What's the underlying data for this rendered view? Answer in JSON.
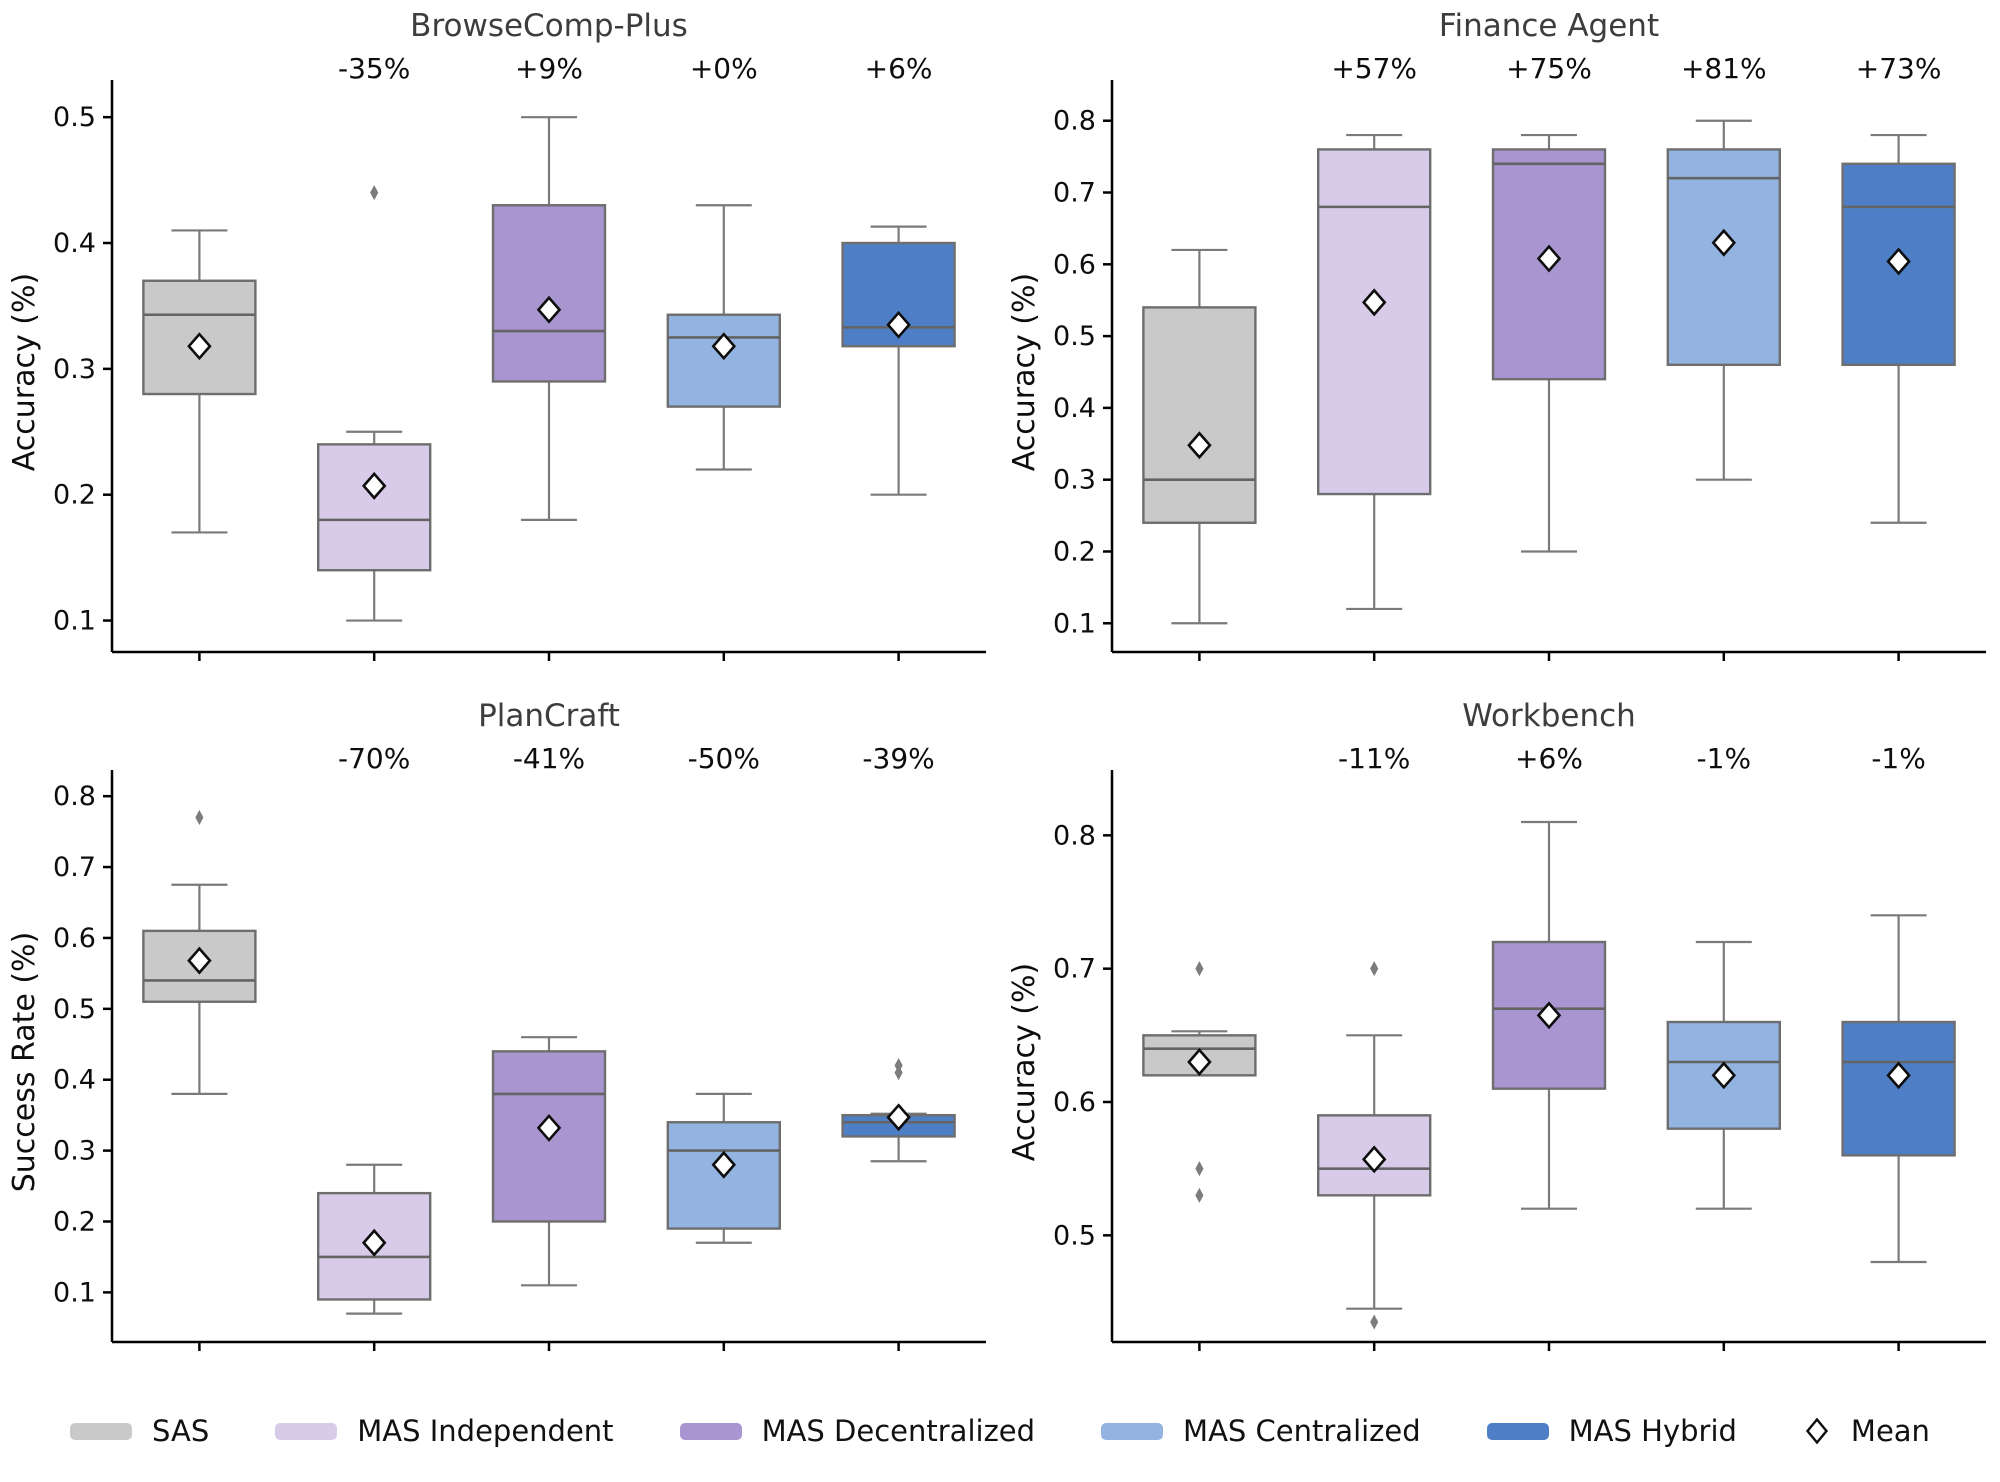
{
  "colors": {
    "fills": [
      "#c9c9c9",
      "#d8cbe9",
      "#a995d0",
      "#93b3e1",
      "#4e7fc6"
    ],
    "box_edge": "#6e6e6e",
    "whisker": "#7a7a7a",
    "median": "#646464",
    "title": "#3d3d3d",
    "annotation_red": "#e01414",
    "annotation_green": "#128a12"
  },
  "legend": {
    "items": [
      {
        "label": "SAS",
        "color": "#c9c9c9"
      },
      {
        "label": "MAS Independent",
        "color": "#d8cbe9"
      },
      {
        "label": "MAS Decentralized",
        "color": "#a995d0"
      },
      {
        "label": "MAS Centralized",
        "color": "#93b3e1"
      },
      {
        "label": "MAS Hybrid",
        "color": "#4e7fc6"
      }
    ],
    "mean_label": "Mean"
  },
  "chart_data": [
    {
      "type": "box",
      "title": "BrowseComp-Plus",
      "ylabel": "Accuracy (%)",
      "ylim": [
        0.075,
        0.52
      ],
      "yticks": [
        0.1,
        0.2,
        0.3,
        0.4,
        0.5
      ],
      "annotations": [
        {
          "text": "-35%",
          "color": "#e01414"
        },
        {
          "text": "+9%",
          "color": "#128a12"
        },
        {
          "text": "+0%",
          "color": "#128a12"
        },
        {
          "text": "+6%",
          "color": "#128a12"
        }
      ],
      "series": [
        {
          "name": "SAS",
          "whislo": 0.17,
          "q1": 0.28,
          "med": 0.343,
          "q3": 0.37,
          "whishi": 0.41,
          "mean": 0.318,
          "fliers": []
        },
        {
          "name": "MAS Independent",
          "whislo": 0.1,
          "q1": 0.14,
          "med": 0.18,
          "q3": 0.24,
          "whishi": 0.25,
          "mean": 0.207,
          "fliers": [
            0.44
          ]
        },
        {
          "name": "MAS Decentralized",
          "whislo": 0.18,
          "q1": 0.29,
          "med": 0.33,
          "q3": 0.43,
          "whishi": 0.5,
          "mean": 0.347,
          "fliers": []
        },
        {
          "name": "MAS Centralized",
          "whislo": 0.22,
          "q1": 0.27,
          "med": 0.325,
          "q3": 0.343,
          "whishi": 0.43,
          "mean": 0.318,
          "fliers": []
        },
        {
          "name": "MAS Hybrid",
          "whislo": 0.2,
          "q1": 0.318,
          "med": 0.333,
          "q3": 0.4,
          "whishi": 0.413,
          "mean": 0.335,
          "fliers": []
        }
      ]
    },
    {
      "type": "box",
      "title": "Finance Agent",
      "ylabel": "Accuracy (%)",
      "ylim": [
        0.06,
        0.84
      ],
      "yticks": [
        0.1,
        0.2,
        0.3,
        0.4,
        0.5,
        0.6,
        0.7,
        0.8
      ],
      "annotations": [
        {
          "text": "+57%",
          "color": "#128a12"
        },
        {
          "text": "+75%",
          "color": "#128a12"
        },
        {
          "text": "+81%",
          "color": "#128a12"
        },
        {
          "text": "+73%",
          "color": "#128a12"
        }
      ],
      "series": [
        {
          "name": "SAS",
          "whislo": 0.1,
          "q1": 0.24,
          "med": 0.3,
          "q3": 0.54,
          "whishi": 0.62,
          "mean": 0.348,
          "fliers": []
        },
        {
          "name": "MAS Independent",
          "whislo": 0.12,
          "q1": 0.28,
          "med": 0.68,
          "q3": 0.76,
          "whishi": 0.78,
          "mean": 0.547,
          "fliers": []
        },
        {
          "name": "MAS Decentralized",
          "whislo": 0.2,
          "q1": 0.44,
          "med": 0.74,
          "q3": 0.76,
          "whishi": 0.78,
          "mean": 0.608,
          "fliers": []
        },
        {
          "name": "MAS Centralized",
          "whislo": 0.3,
          "q1": 0.46,
          "med": 0.72,
          "q3": 0.76,
          "whishi": 0.8,
          "mean": 0.63,
          "fliers": []
        },
        {
          "name": "MAS Hybrid",
          "whislo": 0.24,
          "q1": 0.46,
          "med": 0.68,
          "q3": 0.74,
          "whishi": 0.78,
          "mean": 0.604,
          "fliers": []
        }
      ]
    },
    {
      "type": "box",
      "title": "PlanCraft",
      "ylabel": "Success Rate (%)",
      "ylim": [
        0.03,
        0.82
      ],
      "yticks": [
        0.1,
        0.2,
        0.3,
        0.4,
        0.5,
        0.6,
        0.7,
        0.8
      ],
      "annotations": [
        {
          "text": "-70%",
          "color": "#e01414"
        },
        {
          "text": "-41%",
          "color": "#e01414"
        },
        {
          "text": "-50%",
          "color": "#e01414"
        },
        {
          "text": "-39%",
          "color": "#e01414"
        }
      ],
      "series": [
        {
          "name": "SAS",
          "whislo": 0.38,
          "q1": 0.51,
          "med": 0.54,
          "q3": 0.61,
          "whishi": 0.675,
          "mean": 0.568,
          "fliers": [
            0.77
          ]
        },
        {
          "name": "MAS Independent",
          "whislo": 0.07,
          "q1": 0.09,
          "med": 0.15,
          "q3": 0.24,
          "whishi": 0.28,
          "mean": 0.17,
          "fliers": []
        },
        {
          "name": "MAS Decentralized",
          "whislo": 0.11,
          "q1": 0.2,
          "med": 0.38,
          "q3": 0.44,
          "whishi": 0.46,
          "mean": 0.332,
          "fliers": []
        },
        {
          "name": "MAS Centralized",
          "whislo": 0.17,
          "q1": 0.19,
          "med": 0.3,
          "q3": 0.34,
          "whishi": 0.38,
          "mean": 0.28,
          "fliers": []
        },
        {
          "name": "MAS Hybrid",
          "whislo": 0.285,
          "q1": 0.32,
          "med": 0.34,
          "q3": 0.35,
          "whishi": 0.352,
          "mean": 0.347,
          "fliers": [
            0.41,
            0.42
          ]
        }
      ]
    },
    {
      "type": "box",
      "title": "Workbench",
      "ylabel": "Accuracy (%)",
      "ylim": [
        0.42,
        0.84
      ],
      "yticks": [
        0.5,
        0.6,
        0.7,
        0.8
      ],
      "annotations": [
        {
          "text": "-11%",
          "color": "#e01414"
        },
        {
          "text": "+6%",
          "color": "#128a12"
        },
        {
          "text": "-1%",
          "color": "#e01414"
        },
        {
          "text": "-1%",
          "color": "#e01414"
        }
      ],
      "series": [
        {
          "name": "SAS",
          "whislo": 0.62,
          "q1": 0.62,
          "med": 0.64,
          "q3": 0.65,
          "whishi": 0.653,
          "mean": 0.63,
          "fliers": [
            0.7,
            0.55,
            0.53
          ]
        },
        {
          "name": "MAS Independent",
          "whislo": 0.445,
          "q1": 0.53,
          "med": 0.55,
          "q3": 0.59,
          "whishi": 0.65,
          "mean": 0.557,
          "fliers": [
            0.7,
            0.435
          ]
        },
        {
          "name": "MAS Decentralized",
          "whislo": 0.52,
          "q1": 0.61,
          "med": 0.67,
          "q3": 0.72,
          "whishi": 0.81,
          "mean": 0.665,
          "fliers": []
        },
        {
          "name": "MAS Centralized",
          "whislo": 0.52,
          "q1": 0.58,
          "med": 0.63,
          "q3": 0.66,
          "whishi": 0.72,
          "mean": 0.62,
          "fliers": []
        },
        {
          "name": "MAS Hybrid",
          "whislo": 0.48,
          "q1": 0.56,
          "med": 0.63,
          "q3": 0.66,
          "whishi": 0.74,
          "mean": 0.62,
          "fliers": []
        }
      ]
    }
  ]
}
